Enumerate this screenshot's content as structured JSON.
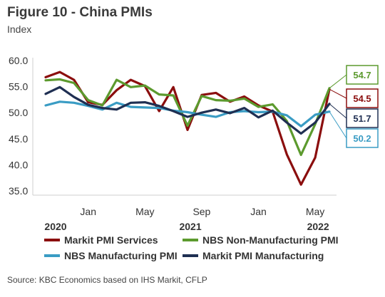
{
  "title": "Figure 10 - China PMIs",
  "subtitle": "Index",
  "source": "Source: KBC Economics based on IHS Markit, CFLP",
  "colors": {
    "services": "#8b0e0e",
    "nonmanufacturing": "#5c9a2e",
    "manufacturing": "#3a9cc4",
    "markit_manufacturing": "#1f2f52",
    "axis": "#cfcfcf"
  },
  "chart_data": {
    "type": "line",
    "ylim": [
      35,
      60
    ],
    "yticks": [
      "60.0",
      "55.0",
      "50.0",
      "45.0",
      "40.0",
      "35.0"
    ],
    "x_tick_labels": [
      {
        "label": "Jan",
        "index": 3
      },
      {
        "label": "May",
        "index": 7
      },
      {
        "label": "Sep",
        "index": 11
      },
      {
        "label": "Jan",
        "index": 15
      },
      {
        "label": "May",
        "index": 19
      }
    ],
    "year_labels": [
      {
        "label": "2020",
        "index": 0
      },
      {
        "label": "2021",
        "index": 9.5
      },
      {
        "label": "2022",
        "index": 18.5
      }
    ],
    "x": [
      "2020-10",
      "2020-11",
      "2020-12",
      "2021-01",
      "2021-02",
      "2021-03",
      "2021-04",
      "2021-05",
      "2021-06",
      "2021-07",
      "2021-08",
      "2021-09",
      "2021-10",
      "2021-11",
      "2021-12",
      "2022-01",
      "2022-02",
      "2022-03",
      "2022-04",
      "2022-05",
      "2022-06"
    ],
    "series": [
      {
        "name": "Markit PMI Services",
        "key": "services",
        "end_label": "54.5",
        "values": [
          56.8,
          57.8,
          56.3,
          52.0,
          51.5,
          54.3,
          56.3,
          55.1,
          50.3,
          54.9,
          46.7,
          53.4,
          53.8,
          52.1,
          53.1,
          51.4,
          50.2,
          42.0,
          36.2,
          41.4,
          54.5
        ]
      },
      {
        "name": "NBS Non-Manufacturing PMI",
        "key": "nonmanufacturing",
        "end_label": "54.7",
        "values": [
          56.2,
          56.4,
          55.7,
          52.4,
          51.4,
          56.3,
          54.9,
          55.2,
          53.5,
          53.3,
          47.5,
          53.2,
          52.4,
          52.3,
          52.7,
          51.1,
          51.6,
          48.4,
          41.9,
          47.8,
          54.7
        ]
      },
      {
        "name": "NBS Manufacturing PMI",
        "key": "manufacturing",
        "end_label": "50.2",
        "values": [
          51.4,
          52.1,
          51.9,
          51.3,
          50.6,
          51.9,
          51.1,
          51.0,
          50.9,
          50.4,
          50.1,
          49.6,
          49.2,
          50.1,
          50.3,
          50.1,
          50.2,
          49.5,
          47.4,
          49.6,
          50.2
        ]
      },
      {
        "name": "Markit PMI Manufacturing",
        "key": "markit_manufacturing",
        "end_label": "51.7",
        "values": [
          53.6,
          54.9,
          53.0,
          51.5,
          50.9,
          50.6,
          51.9,
          52.0,
          51.3,
          50.3,
          49.2,
          50.0,
          50.6,
          49.9,
          50.9,
          49.1,
          50.4,
          48.1,
          46.0,
          48.1,
          51.7
        ]
      }
    ],
    "legend": {
      "rows": [
        [
          "Markit PMI Services",
          "NBS Non-Manufacturing PMI"
        ],
        [
          "NBS Manufacturing PMI",
          "Markit PMI Manufacturing"
        ]
      ],
      "placement": "bottom"
    },
    "end_labels": [
      "54.7",
      "54.5",
      "51.7",
      "50.2"
    ]
  }
}
